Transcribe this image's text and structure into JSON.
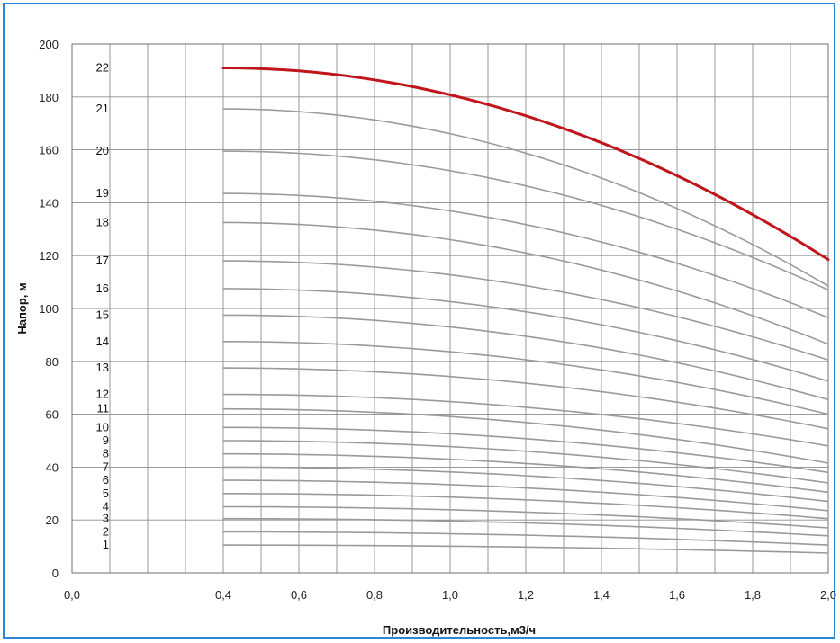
{
  "chart_data": {
    "type": "line",
    "title": "",
    "xlabel": "Производительность,м3/ч",
    "ylabel": "Напор, м",
    "xlim": [
      0.0,
      2.0
    ],
    "ylim": [
      0,
      200
    ],
    "x_ticks": [
      "0,0",
      "0,4",
      "0,6",
      "0,8",
      "1,0",
      "1,2",
      "1,4",
      "1,6",
      "1,8",
      "2,0"
    ],
    "y_ticks": [
      "0",
      "20",
      "40",
      "60",
      "80",
      "100",
      "120",
      "140",
      "160",
      "180",
      "200"
    ],
    "grid": true,
    "legend": "none",
    "line_color": "#9a9a9a",
    "highlight_color": "#c0151b",
    "highlight_series": "22",
    "x": [
      0.4,
      2.0
    ],
    "series": [
      {
        "name": "1",
        "values": [
          10.5,
          7.5
        ]
      },
      {
        "name": "2",
        "values": [
          15.5,
          10.5
        ]
      },
      {
        "name": "3",
        "values": [
          20.5,
          14.0
        ]
      },
      {
        "name": "4",
        "values": [
          25.0,
          17.0
        ]
      },
      {
        "name": "5",
        "values": [
          30.0,
          20.5
        ]
      },
      {
        "name": "6",
        "values": [
          35.0,
          23.5
        ]
      },
      {
        "name": "7",
        "values": [
          40.0,
          27.0
        ]
      },
      {
        "name": "8",
        "values": [
          45.0,
          30.5
        ]
      },
      {
        "name": "9",
        "values": [
          50.0,
          34.0
        ]
      },
      {
        "name": "10",
        "values": [
          55.0,
          38.0
        ]
      },
      {
        "name": "11",
        "values": [
          62.0,
          41.5
        ]
      },
      {
        "name": "12",
        "values": [
          67.5,
          48.0
        ]
      },
      {
        "name": "13",
        "values": [
          77.5,
          54.5
        ]
      },
      {
        "name": "14",
        "values": [
          87.5,
          60.0
        ]
      },
      {
        "name": "15",
        "values": [
          97.5,
          65.5
        ]
      },
      {
        "name": "16",
        "values": [
          107.5,
          72.5
        ]
      },
      {
        "name": "17",
        "values": [
          118.0,
          80.5
        ]
      },
      {
        "name": "18",
        "values": [
          132.5,
          86.5
        ]
      },
      {
        "name": "19",
        "values": [
          143.5,
          96.5
        ]
      },
      {
        "name": "20",
        "values": [
          159.5,
          107.0
        ]
      },
      {
        "name": "21",
        "values": [
          175.5,
          108.5
        ]
      },
      {
        "name": "22",
        "values": [
          191.0,
          118.5
        ]
      }
    ]
  }
}
